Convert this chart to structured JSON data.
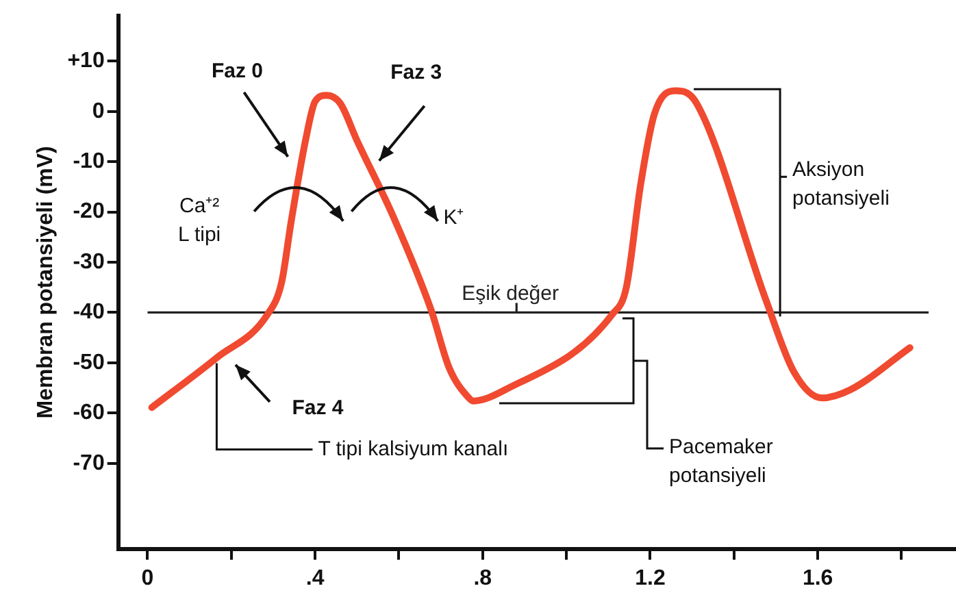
{
  "chart_data": {
    "type": "line",
    "ylabel": "Membran potansiyeli (mV)",
    "x": [
      0.01,
      0.165,
      0.287,
      0.32,
      0.343,
      0.377,
      0.4,
      0.427,
      0.46,
      0.5,
      0.587,
      0.677,
      0.72,
      0.767,
      0.777,
      0.853,
      1.11,
      1.143,
      1.177,
      1.21,
      1.26,
      1.31,
      1.477,
      1.543,
      1.61,
      1.677,
      1.82
    ],
    "series": [
      {
        "color": "#f04a30",
        "values": [
          -58.9,
          -49,
          -40.3,
          -34,
          -21.8,
          -5.8,
          2,
          3.2,
          1.6,
          -5.8,
          -21,
          -39.5,
          -51,
          -57,
          -57.6,
          -55.4,
          -40.3,
          -35,
          -14.6,
          -0.5,
          4.1,
          1.7,
          -37.7,
          -51.8,
          -57,
          -55.4,
          -47
        ]
      }
    ],
    "xlim": [
      -0.07,
      1.93
    ],
    "xticks": [
      0,
      {
        "value": 0.2,
        "label": null
      },
      {
        "value": 0.4,
        "label": ".4"
      },
      {
        "value": 0.6,
        "label": null
      },
      {
        "value": 0.8,
        "label": ".8"
      },
      {
        "value": 1.0,
        "label": null
      },
      1.2,
      {
        "value": 1.4,
        "label": null
      },
      1.6,
      {
        "value": 1.8,
        "label": null
      }
    ],
    "ylim": [
      -87,
      19
    ],
    "yticks": [
      {
        "value": 10,
        "label": "+10"
      },
      0,
      -10,
      -20,
      -30,
      -40,
      -50,
      -60,
      -70
    ],
    "ref_lines": [
      {
        "axis": "y",
        "value": -40,
        "label": "Eşik değer",
        "color": "#222222"
      }
    ],
    "marker": "none",
    "line_style": "solid",
    "legend": false,
    "annotations": [
      "Faz 0",
      "Faz 3",
      "Faz 4",
      "Ca⁺²\nL tipi",
      "K⁺",
      {
        "text": "T tipi kalsiyum kanalı",
        "x": 0.165,
        "y": -49
      },
      "Pacemaker\npotansiyeli",
      "Aksiyon\npotansiyeli"
    ]
  }
}
